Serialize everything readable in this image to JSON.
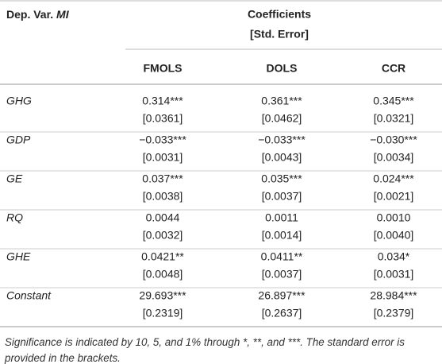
{
  "header": {
    "dep_var_label": "Dep. Var.",
    "dep_var": "MI",
    "group_title": "Coefficients",
    "group_subtitle": "[Std. Error]",
    "columns": [
      "FMOLS",
      "DOLS",
      "CCR"
    ]
  },
  "table": {
    "rows": [
      {
        "label": "GHG",
        "cells": [
          [
            "0.314***",
            "[0.0361]"
          ],
          [
            "0.361***",
            "[0.0462]"
          ],
          [
            "0.345***",
            "[0.0321]"
          ]
        ]
      },
      {
        "label": "GDP",
        "cells": [
          [
            "−0.033***",
            "[0.0031]"
          ],
          [
            "−0.033***",
            "[0.0043]"
          ],
          [
            "−0.030***",
            "[0.0034]"
          ]
        ]
      },
      {
        "label": "GE",
        "cells": [
          [
            "0.037***",
            "[0.0038]"
          ],
          [
            "0.035***",
            "[0.0037]"
          ],
          [
            "0.024***",
            "[0.0021]"
          ]
        ]
      },
      {
        "label": "RQ",
        "cells": [
          [
            "0.0044",
            "[0.0032]"
          ],
          [
            "0.0011",
            "[0.0014]"
          ],
          [
            "0.0010",
            "[0.0040]"
          ]
        ]
      },
      {
        "label": "GHE",
        "cells": [
          [
            "0.0421**",
            "[0.0048]"
          ],
          [
            "0.0411**",
            "[0.0037]"
          ],
          [
            "0.034*",
            "[0.0031]"
          ]
        ]
      },
      {
        "label": "Constant",
        "cells": [
          [
            "29.693***",
            "[0.2319]"
          ],
          [
            "26.897***",
            "[0.2637]"
          ],
          [
            "28.984***",
            "[0.2379]"
          ]
        ]
      }
    ]
  },
  "footnote": "Significance is indicated by 10, 5, and 1% through *, **, and ***. The standard error is provided in the brackets."
}
